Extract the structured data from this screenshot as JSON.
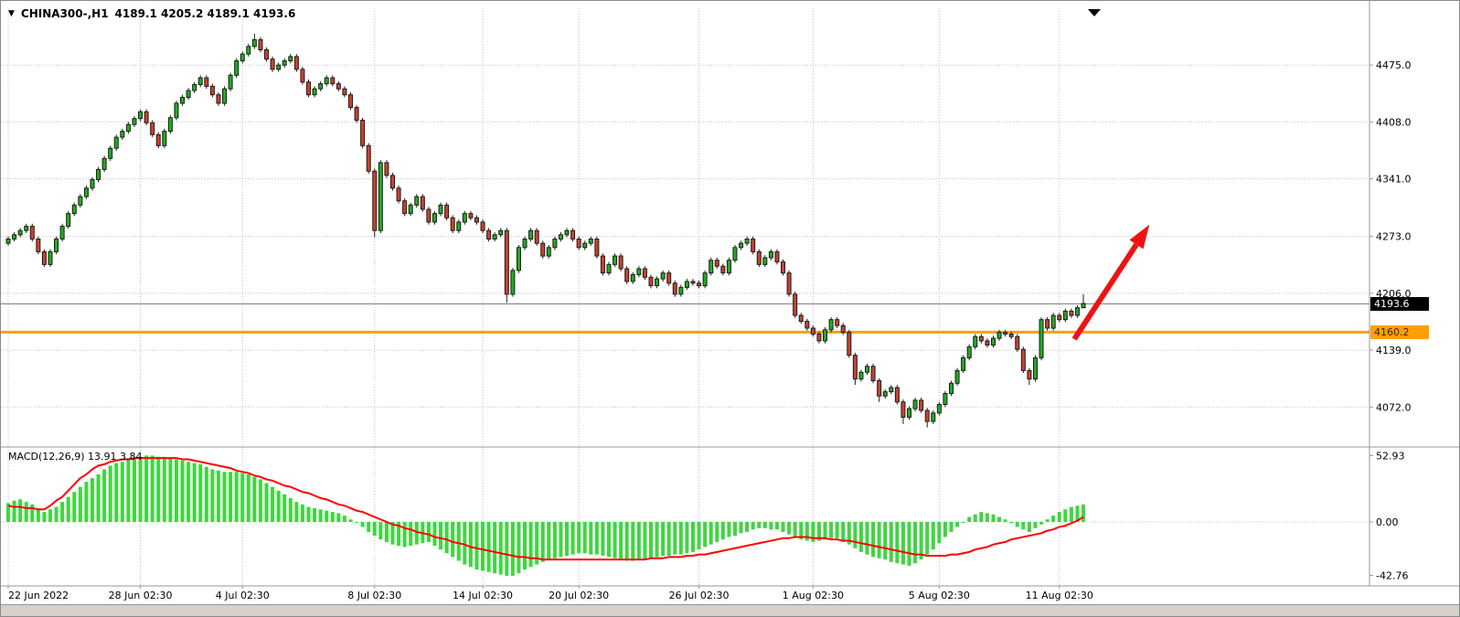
{
  "header": {
    "symbol_timeframe": "CHINA300-,H1",
    "ohlc": "4189.1 4205.2 4189.1 4193.6",
    "dropdown_marker": "▼"
  },
  "price_axis": {
    "current_price_label": "4193.6",
    "orange_line_price_label": "4160.2"
  },
  "macd_panel": {
    "label": "MACD(12,26,9) 13.91 3.84"
  },
  "colors": {
    "up_candle": "#1fae1f",
    "down_candle": "#c8432f",
    "candle_outline": "#1c1c1c",
    "macd_bar": "#3fd63f",
    "macd_signal": "#ff0000",
    "orange_line": "#ffa000",
    "current_price_line": "#777777",
    "arrow": "#ef1212",
    "grid": "#c0c0c0",
    "border": "#979797",
    "axis_text": "#000000"
  },
  "chart_data": {
    "type": "candlestick",
    "symbol": "CHINA300-",
    "timeframe": "H1",
    "title": "CHINA300-,H1 4189.1 4205.2 4189.1 4193.6",
    "current_price": 4193.6,
    "orange_line_price": 4160.2,
    "price_ticks": [
      "4475.0",
      "4408.0",
      "4341.0",
      "4273.0",
      "4206.0",
      "4139.0",
      "4072.0"
    ],
    "ylim": [
      4026,
      4542
    ],
    "grid": "dotted",
    "x_ticks": [
      {
        "i": 0,
        "label": "22 Jun 2022"
      },
      {
        "i": 22,
        "label": "28 Jun 02:30"
      },
      {
        "i": 39,
        "label": "4 Jul 02:30"
      },
      {
        "i": 61,
        "label": "8 Jul 02:30"
      },
      {
        "i": 79,
        "label": "14 Jul 02:30"
      },
      {
        "i": 95,
        "label": "20 Jul 02:30"
      },
      {
        "i": 115,
        "label": "26 Jul 02:30"
      },
      {
        "i": 134,
        "label": "1 Aug 02:30"
      },
      {
        "i": 155,
        "label": "5 Aug 02:30"
      },
      {
        "i": 175,
        "label": "11 Aug 02:30"
      }
    ],
    "candles": [
      [
        4265,
        4273,
        4262,
        4270
      ],
      [
        4270,
        4278,
        4267,
        4275
      ],
      [
        4275,
        4283,
        4272,
        4280
      ],
      [
        4280,
        4288,
        4277,
        4285
      ],
      [
        4285,
        4288,
        4267,
        4270
      ],
      [
        4270,
        4273,
        4252,
        4255
      ],
      [
        4255,
        4258,
        4237,
        4240
      ],
      [
        4240,
        4258,
        4237,
        4255
      ],
      [
        4255,
        4273,
        4252,
        4270
      ],
      [
        4270,
        4288,
        4267,
        4285
      ],
      [
        4285,
        4303,
        4282,
        4300
      ],
      [
        4300,
        4313,
        4297,
        4310
      ],
      [
        4310,
        4323,
        4307,
        4320
      ],
      [
        4320,
        4333,
        4317,
        4330
      ],
      [
        4330,
        4343,
        4327,
        4340
      ],
      [
        4340,
        4355,
        4337,
        4352
      ],
      [
        4352,
        4368,
        4349,
        4365
      ],
      [
        4365,
        4380,
        4362,
        4377
      ],
      [
        4377,
        4393,
        4374,
        4390
      ],
      [
        4390,
        4400,
        4387,
        4397
      ],
      [
        4397,
        4408,
        4394,
        4405
      ],
      [
        4405,
        4415,
        4402,
        4412
      ],
      [
        4412,
        4423,
        4409,
        4420
      ],
      [
        4420,
        4423,
        4404,
        4407
      ],
      [
        4407,
        4410,
        4390,
        4393
      ],
      [
        4393,
        4396,
        4377,
        4380
      ],
      [
        4380,
        4400,
        4377,
        4397
      ],
      [
        4397,
        4416,
        4394,
        4413
      ],
      [
        4413,
        4433,
        4410,
        4430
      ],
      [
        4430,
        4440,
        4427,
        4437
      ],
      [
        4437,
        4448,
        4434,
        4445
      ],
      [
        4445,
        4455,
        4442,
        4452
      ],
      [
        4452,
        4463,
        4449,
        4460
      ],
      [
        4460,
        4463,
        4447,
        4450
      ],
      [
        4450,
        4453,
        4437,
        4440
      ],
      [
        4440,
        4443,
        4427,
        4430
      ],
      [
        4430,
        4450,
        4427,
        4447
      ],
      [
        4447,
        4466,
        4444,
        4463
      ],
      [
        4463,
        4483,
        4460,
        4480
      ],
      [
        4480,
        4491,
        4477,
        4488
      ],
      [
        4488,
        4500,
        4485,
        4497
      ],
      [
        4497,
        4512,
        4494,
        4505
      ],
      [
        4505,
        4508,
        4490,
        4493
      ],
      [
        4493,
        4496,
        4479,
        4482
      ],
      [
        4482,
        4485,
        4467,
        4470
      ],
      [
        4470,
        4478,
        4467,
        4475
      ],
      [
        4475,
        4483,
        4472,
        4480
      ],
      [
        4480,
        4488,
        4477,
        4485
      ],
      [
        4485,
        4488,
        4467,
        4470
      ],
      [
        4470,
        4473,
        4452,
        4455
      ],
      [
        4455,
        4458,
        4437,
        4440
      ],
      [
        4440,
        4450,
        4437,
        4447
      ],
      [
        4447,
        4456,
        4444,
        4453
      ],
      [
        4453,
        4463,
        4450,
        4460
      ],
      [
        4460,
        4463,
        4450,
        4453
      ],
      [
        4453,
        4456,
        4444,
        4447
      ],
      [
        4447,
        4450,
        4437,
        4440
      ],
      [
        4440,
        4443,
        4422,
        4425
      ],
      [
        4425,
        4428,
        4407,
        4410
      ],
      [
        4410,
        4413,
        4377,
        4380
      ],
      [
        4380,
        4383,
        4347,
        4350
      ],
      [
        4350,
        4353,
        4272,
        4280
      ],
      [
        4280,
        4363,
        4277,
        4360
      ],
      [
        4360,
        4363,
        4342,
        4345
      ],
      [
        4345,
        4348,
        4327,
        4330
      ],
      [
        4330,
        4333,
        4312,
        4315
      ],
      [
        4315,
        4318,
        4297,
        4300
      ],
      [
        4300,
        4313,
        4297,
        4310
      ],
      [
        4310,
        4323,
        4307,
        4320
      ],
      [
        4320,
        4323,
        4302,
        4305
      ],
      [
        4305,
        4308,
        4287,
        4290
      ],
      [
        4290,
        4303,
        4287,
        4300
      ],
      [
        4300,
        4313,
        4297,
        4310
      ],
      [
        4310,
        4313,
        4292,
        4295
      ],
      [
        4295,
        4298,
        4277,
        4280
      ],
      [
        4280,
        4293,
        4277,
        4290
      ],
      [
        4290,
        4303,
        4287,
        4300
      ],
      [
        4300,
        4303,
        4292,
        4295
      ],
      [
        4295,
        4298,
        4287,
        4290
      ],
      [
        4290,
        4293,
        4277,
        4280
      ],
      [
        4280,
        4283,
        4267,
        4270
      ],
      [
        4270,
        4278,
        4267,
        4275
      ],
      [
        4275,
        4283,
        4272,
        4280
      ],
      [
        4280,
        4283,
        4195,
        4205
      ],
      [
        4205,
        4236,
        4202,
        4233
      ],
      [
        4233,
        4263,
        4230,
        4260
      ],
      [
        4260,
        4273,
        4257,
        4270
      ],
      [
        4270,
        4283,
        4267,
        4280
      ],
      [
        4280,
        4283,
        4262,
        4265
      ],
      [
        4265,
        4268,
        4247,
        4250
      ],
      [
        4250,
        4263,
        4247,
        4260
      ],
      [
        4260,
        4273,
        4257,
        4270
      ],
      [
        4270,
        4278,
        4267,
        4275
      ],
      [
        4275,
        4283,
        4272,
        4280
      ],
      [
        4280,
        4283,
        4267,
        4270
      ],
      [
        4270,
        4273,
        4257,
        4260
      ],
      [
        4260,
        4268,
        4257,
        4265
      ],
      [
        4265,
        4273,
        4262,
        4270
      ],
      [
        4270,
        4273,
        4247,
        4250
      ],
      [
        4250,
        4253,
        4227,
        4230
      ],
      [
        4230,
        4243,
        4227,
        4240
      ],
      [
        4240,
        4253,
        4237,
        4250
      ],
      [
        4250,
        4253,
        4232,
        4235
      ],
      [
        4235,
        4238,
        4217,
        4220
      ],
      [
        4220,
        4231,
        4217,
        4228
      ],
      [
        4228,
        4238,
        4225,
        4235
      ],
      [
        4235,
        4238,
        4222,
        4225
      ],
      [
        4225,
        4228,
        4212,
        4215
      ],
      [
        4215,
        4226,
        4212,
        4223
      ],
      [
        4223,
        4233,
        4220,
        4230
      ],
      [
        4230,
        4233,
        4215,
        4218
      ],
      [
        4218,
        4221,
        4202,
        4205
      ],
      [
        4205,
        4216,
        4202,
        4213
      ],
      [
        4213,
        4223,
        4210,
        4220
      ],
      [
        4220,
        4223,
        4215,
        4218
      ],
      [
        4218,
        4221,
        4212,
        4215
      ],
      [
        4215,
        4233,
        4212,
        4230
      ],
      [
        4230,
        4248,
        4227,
        4245
      ],
      [
        4245,
        4248,
        4235,
        4238
      ],
      [
        4238,
        4241,
        4227,
        4230
      ],
      [
        4230,
        4248,
        4227,
        4245
      ],
      [
        4245,
        4263,
        4242,
        4260
      ],
      [
        4260,
        4268,
        4257,
        4265
      ],
      [
        4265,
        4273,
        4262,
        4270
      ],
      [
        4270,
        4273,
        4252,
        4255
      ],
      [
        4255,
        4258,
        4237,
        4240
      ],
      [
        4240,
        4251,
        4237,
        4248
      ],
      [
        4248,
        4258,
        4245,
        4255
      ],
      [
        4255,
        4258,
        4240,
        4243
      ],
      [
        4243,
        4246,
        4227,
        4230
      ],
      [
        4230,
        4233,
        4202,
        4205
      ],
      [
        4205,
        4208,
        4177,
        4180
      ],
      [
        4180,
        4183,
        4170,
        4173
      ],
      [
        4173,
        4176,
        4162,
        4165
      ],
      [
        4165,
        4168,
        4155,
        4158
      ],
      [
        4158,
        4161,
        4147,
        4150
      ],
      [
        4150,
        4166,
        4147,
        4163
      ],
      [
        4163,
        4178,
        4160,
        4175
      ],
      [
        4175,
        4178,
        4165,
        4168
      ],
      [
        4168,
        4171,
        4157,
        4160
      ],
      [
        4160,
        4163,
        4130,
        4133
      ],
      [
        4133,
        4136,
        4098,
        4105
      ],
      [
        4105,
        4116,
        4102,
        4113
      ],
      [
        4113,
        4123,
        4110,
        4120
      ],
      [
        4120,
        4123,
        4100,
        4103
      ],
      [
        4103,
        4106,
        4078,
        4085
      ],
      [
        4085,
        4093,
        4082,
        4090
      ],
      [
        4090,
        4098,
        4087,
        4095
      ],
      [
        4095,
        4098,
        4075,
        4078
      ],
      [
        4078,
        4081,
        4052,
        4060
      ],
      [
        4060,
        4073,
        4057,
        4070
      ],
      [
        4070,
        4083,
        4067,
        4080
      ],
      [
        4080,
        4083,
        4065,
        4068
      ],
      [
        4068,
        4071,
        4048,
        4055
      ],
      [
        4055,
        4068,
        4052,
        4065
      ],
      [
        4065,
        4078,
        4062,
        4075
      ],
      [
        4075,
        4091,
        4072,
        4088
      ],
      [
        4088,
        4103,
        4085,
        4100
      ],
      [
        4100,
        4118,
        4097,
        4115
      ],
      [
        4115,
        4133,
        4112,
        4130
      ],
      [
        4130,
        4146,
        4127,
        4143
      ],
      [
        4143,
        4158,
        4140,
        4155
      ],
      [
        4155,
        4158,
        4147,
        4150
      ],
      [
        4150,
        4153,
        4142,
        4145
      ],
      [
        4145,
        4156,
        4142,
        4153
      ],
      [
        4153,
        4163,
        4150,
        4160
      ],
      [
        4160,
        4163,
        4155,
        4158
      ],
      [
        4158,
        4161,
        4152,
        4155
      ],
      [
        4155,
        4158,
        4137,
        4140
      ],
      [
        4140,
        4143,
        4112,
        4115
      ],
      [
        4115,
        4118,
        4098,
        4105
      ],
      [
        4105,
        4133,
        4102,
        4130
      ],
      [
        4130,
        4178,
        4127,
        4175
      ],
      [
        4175,
        4178,
        4162,
        4165
      ],
      [
        4165,
        4183,
        4162,
        4180
      ],
      [
        4180,
        4183,
        4172,
        4175
      ],
      [
        4175,
        4188,
        4172,
        4185
      ],
      [
        4185,
        4188,
        4177,
        4180
      ],
      [
        4180,
        4192,
        4177,
        4189
      ],
      [
        4189,
        4205,
        4189,
        4194
      ]
    ],
    "macd": {
      "label": "MACD(12,26,9) 13.91 3.84",
      "main_value": 13.91,
      "signal_value": 3.84,
      "ticks": [
        "52.93",
        "0.00",
        "-42.76"
      ],
      "hist": [
        15,
        17,
        18,
        16,
        14,
        11,
        8,
        10,
        12,
        16,
        20,
        24,
        28,
        32,
        35,
        38,
        42,
        45,
        47,
        48,
        50,
        51,
        52,
        53,
        53,
        52,
        52,
        51,
        50,
        49,
        48,
        47,
        46,
        44,
        42,
        41,
        40,
        40,
        40,
        39,
        38,
        36,
        34,
        31,
        28,
        25,
        22,
        19,
        16,
        14,
        12,
        11,
        10,
        9,
        8,
        7,
        5,
        2,
        0,
        -4,
        -8,
        -11,
        -14,
        -16,
        -18,
        -19,
        -20,
        -19,
        -18,
        -17,
        -16,
        -19,
        -22,
        -25,
        -28,
        -31,
        -34,
        -36,
        -38,
        -39,
        -40,
        -41,
        -42,
        -43,
        -43,
        -41,
        -38,
        -36,
        -34,
        -32,
        -30,
        -29,
        -28,
        -27,
        -26,
        -25,
        -25,
        -26,
        -26,
        -27,
        -28,
        -29,
        -30,
        -31,
        -31,
        -30,
        -30,
        -29,
        -28,
        -27,
        -27,
        -26,
        -26,
        -25,
        -24,
        -22,
        -20,
        -18,
        -16,
        -14,
        -12,
        -11,
        -9,
        -8,
        -6,
        -5,
        -5,
        -6,
        -6,
        -8,
        -10,
        -12,
        -14,
        -15,
        -16,
        -15,
        -14,
        -13,
        -13,
        -16,
        -18,
        -21,
        -24,
        -26,
        -28,
        -29,
        -30,
        -32,
        -33,
        -34,
        -35,
        -33,
        -30,
        -26,
        -22,
        -17,
        -12,
        -8,
        -4,
        0,
        4,
        6,
        8,
        7,
        6,
        4,
        2,
        -1,
        -4,
        -6,
        -8,
        -5,
        -2,
        2,
        5,
        8,
        10,
        12,
        13,
        14
      ],
      "signal": [
        13,
        12,
        12,
        11,
        11,
        10,
        10,
        13,
        17,
        20,
        25,
        30,
        35,
        38,
        42,
        45,
        46,
        48,
        49,
        50,
        50,
        51,
        51,
        51,
        51,
        51,
        51,
        51,
        51,
        50,
        50,
        49,
        48,
        47,
        46,
        45,
        44,
        43,
        41,
        40,
        39,
        37,
        36,
        34,
        33,
        31,
        29,
        28,
        26,
        24,
        23,
        21,
        19,
        18,
        16,
        14,
        13,
        11,
        9,
        8,
        6,
        4,
        2,
        0,
        -2,
        -3,
        -5,
        -6,
        -8,
        -9,
        -10,
        -12,
        -13,
        -14,
        -16,
        -17,
        -18,
        -20,
        -21,
        -22,
        -23,
        -24,
        -25,
        -26,
        -27,
        -28,
        -28,
        -29,
        -29,
        -30,
        -30,
        -30,
        -30,
        -30,
        -30,
        -30,
        -30,
        -30,
        -30,
        -30,
        -30,
        -30,
        -30,
        -30,
        -30,
        -30,
        -30,
        -29,
        -29,
        -29,
        -28,
        -28,
        -28,
        -27,
        -27,
        -26,
        -26,
        -25,
        -24,
        -23,
        -22,
        -21,
        -20,
        -19,
        -18,
        -17,
        -16,
        -15,
        -14,
        -13,
        -13,
        -12,
        -12,
        -12,
        -13,
        -13,
        -13,
        -14,
        -14,
        -15,
        -15,
        -16,
        -17,
        -18,
        -19,
        -20,
        -21,
        -22,
        -23,
        -24,
        -25,
        -26,
        -26,
        -27,
        -27,
        -27,
        -27,
        -26,
        -26,
        -25,
        -24,
        -22,
        -21,
        -20,
        -18,
        -17,
        -16,
        -14,
        -13,
        -12,
        -11,
        -10,
        -9,
        -7,
        -6,
        -4,
        -3,
        -1,
        1,
        4
      ]
    },
    "arrow": {
      "from_i": 177.5,
      "from_price": 4152,
      "to_i": 190,
      "to_price": 4287
    }
  }
}
